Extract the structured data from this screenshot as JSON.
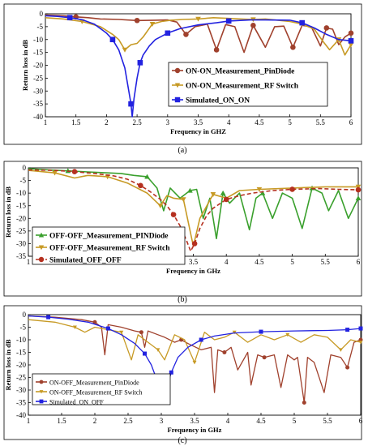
{
  "chart_data": [
    {
      "type": "line",
      "panel": "a",
      "caption": "(a)",
      "xlabel": "Frequency in GHZ",
      "ylabel": "Return loss in dB",
      "xlim": [
        1,
        6
      ],
      "ylim": [
        -40,
        0
      ],
      "xticks": [
        "1",
        "1.5",
        "2",
        "2.5",
        "3",
        "3.5",
        "4",
        "4.5",
        "5",
        "5.5",
        "6"
      ],
      "yticks": [
        "0",
        "-5",
        "-10",
        "-15",
        "-20",
        "-25",
        "-30",
        "-35",
        "-40"
      ],
      "legend_position": "right",
      "legend_style": "bold",
      "series": [
        {
          "name": "ON-ON_Measurement_PinDiode",
          "color": "#a0412d",
          "marker": "circle",
          "x": [
            1.0,
            1.3,
            1.5,
            1.7,
            1.9,
            2.2,
            2.5,
            2.8,
            3.0,
            3.15,
            3.3,
            3.45,
            3.55,
            3.65,
            3.8,
            3.95,
            4.1,
            4.25,
            4.4,
            4.6,
            4.75,
            4.9,
            5.05,
            5.2,
            5.35,
            5.5,
            5.6,
            5.7,
            5.8,
            5.9,
            6.0
          ],
          "y": [
            -0.5,
            -0.8,
            -1.2,
            -1.5,
            -2.0,
            -2.2,
            -2.6,
            -2.5,
            -2.4,
            -3.2,
            -8.0,
            -5.0,
            -4.5,
            -4.0,
            -14.0,
            -4.2,
            -5.0,
            -15.0,
            -4.5,
            -13.0,
            -5.0,
            -4.8,
            -13.0,
            -4.5,
            -5.0,
            -12.5,
            -5.5,
            -6.0,
            -12.0,
            -9.0,
            -7.5
          ]
        },
        {
          "name": "ON-ON_Measurement_RF Switch",
          "color": "#c79a25",
          "marker": "triangle-down",
          "x": [
            1.0,
            1.3,
            1.6,
            1.9,
            2.1,
            2.2,
            2.3,
            2.4,
            2.5,
            2.6,
            2.75,
            2.9,
            3.05,
            3.25,
            3.5,
            3.75,
            4.0,
            4.2,
            4.4,
            4.6,
            4.8,
            5.0,
            5.2,
            5.4,
            5.55,
            5.65,
            5.8,
            5.9,
            6.0
          ],
          "y": [
            -1.5,
            -2.0,
            -3.0,
            -5.0,
            -8.0,
            -10.0,
            -14.0,
            -12.0,
            -11.5,
            -9.0,
            -4.0,
            -3.0,
            -2.5,
            -2.2,
            -2.0,
            -1.5,
            -1.8,
            -2.0,
            -2.2,
            -2.0,
            -2.5,
            -3.0,
            -4.0,
            -6.0,
            -11.0,
            -14.0,
            -10.0,
            -16.0,
            -12.0
          ]
        },
        {
          "name": "Simulated_ON_ON",
          "color": "#2222e0",
          "marker": "square",
          "x": [
            1.0,
            1.2,
            1.4,
            1.6,
            1.8,
            2.0,
            2.1,
            2.2,
            2.3,
            2.35,
            2.4,
            2.42,
            2.45,
            2.5,
            2.55,
            2.6,
            2.7,
            2.8,
            3.0,
            3.2,
            3.5,
            3.8,
            4.0,
            4.35,
            4.6,
            5.0,
            5.2,
            5.4,
            5.6,
            5.8,
            6.0
          ],
          "y": [
            -0.8,
            -1.0,
            -1.5,
            -2.3,
            -4.0,
            -7.5,
            -10.0,
            -14.0,
            -21.0,
            -28.0,
            -35.0,
            -40.0,
            -33.0,
            -25.0,
            -19.0,
            -16.0,
            -12.5,
            -10.0,
            -7.5,
            -5.8,
            -4.3,
            -3.5,
            -2.8,
            -2.4,
            -2.4,
            -2.5,
            -3.5,
            -5.5,
            -8.0,
            -10.0,
            -10.5
          ]
        }
      ]
    },
    {
      "type": "line",
      "panel": "b",
      "caption": "(b)",
      "xlabel": "Frequency in GHz",
      "ylabel": "Return loss in dB",
      "xlim": [
        1,
        6
      ],
      "ylim": [
        -35,
        0
      ],
      "xticks": [
        "1",
        "1.5",
        "2",
        "2.5",
        "3",
        "3.5",
        "4",
        "4.5",
        "5",
        "5.5",
        "6"
      ],
      "yticks": [
        "0",
        "-5",
        "-10",
        "-15",
        "-20",
        "-25",
        "-30",
        "-35"
      ],
      "legend_position": "bottom-left",
      "legend_style": "bold",
      "series": [
        {
          "name": "OFF-OFF_Measurement_PINDiode",
          "color": "#3aa02d",
          "marker": "triangle-up",
          "x": [
            1.0,
            1.3,
            1.6,
            1.9,
            2.2,
            2.4,
            2.6,
            2.8,
            2.95,
            3.05,
            3.15,
            3.3,
            3.45,
            3.55,
            3.65,
            3.75,
            3.85,
            3.95,
            4.05,
            4.2,
            4.35,
            4.45,
            4.55,
            4.7,
            4.85,
            5.0,
            5.15,
            5.3,
            5.45,
            5.55,
            5.7,
            5.85,
            6.0
          ],
          "y": [
            -0.3,
            -0.8,
            -1.2,
            -1.6,
            -2.0,
            -2.2,
            -3.0,
            -3.5,
            -8.0,
            -17.0,
            -8.0,
            -12.0,
            -9.0,
            -8.5,
            -20.0,
            -12.0,
            -28.0,
            -10.0,
            -14.0,
            -10.0,
            -24.5,
            -12.0,
            -10.0,
            -20.0,
            -10.0,
            -12.0,
            -24.0,
            -8.0,
            -10.0,
            -17.0,
            -9.0,
            -20.0,
            -12.0
          ]
        },
        {
          "name": "OFF-OFF_Measurement_RF Switch",
          "color": "#c79a25",
          "marker": "triangle-down",
          "x": [
            1.0,
            1.4,
            1.7,
            1.9,
            2.2,
            2.5,
            2.8,
            3.0,
            3.1,
            3.2,
            3.35,
            3.5,
            3.6,
            3.8,
            4.0,
            4.2,
            4.5,
            5.0,
            5.5,
            6.0
          ],
          "y": [
            -1.0,
            -2.0,
            -4.0,
            -3.0,
            -3.5,
            -6.0,
            -10.0,
            -15.0,
            -11.0,
            -12.0,
            -12.5,
            -31.0,
            -20.0,
            -10.5,
            -12.0,
            -9.0,
            -8.5,
            -8.0,
            -7.5,
            -7.5
          ]
        },
        {
          "name": "Simulated_OFF_OFF",
          "color": "#b5301f",
          "marker": "circle",
          "x": [
            1.0,
            1.4,
            1.7,
            2.0,
            2.3,
            2.5,
            2.7,
            2.85,
            3.0,
            3.1,
            3.2,
            3.3,
            3.4,
            3.46,
            3.52,
            3.6,
            3.7,
            3.8,
            4.0,
            4.2,
            4.4,
            4.7,
            5.0,
            5.4,
            5.7,
            6.0
          ],
          "y": [
            -0.8,
            -1.0,
            -1.5,
            -2.2,
            -3.2,
            -4.5,
            -7.0,
            -9.5,
            -12.5,
            -15.0,
            -18.5,
            -23.0,
            -29.0,
            -33.0,
            -30.0,
            -24.0,
            -19.0,
            -16.0,
            -12.5,
            -11.0,
            -10.0,
            -9.0,
            -8.5,
            -8.2,
            -8.5,
            -8.7
          ]
        }
      ]
    },
    {
      "type": "line",
      "panel": "c",
      "caption": "(c)",
      "xlabel": "Frequency in GHz",
      "ylabel": "Return loss in dB",
      "xlim": [
        1,
        6
      ],
      "ylim": [
        -40,
        0
      ],
      "xticks": [
        "1",
        "1.5",
        "2",
        "2.5",
        "3",
        "3.5",
        "4",
        "4.5",
        "5",
        "5.5",
        "6"
      ],
      "yticks": [
        "0",
        "-5",
        "-10",
        "-15",
        "-20",
        "-25",
        "-30",
        "-35",
        "-40"
      ],
      "legend_position": "bottom-left",
      "legend_style": "normal",
      "series": [
        {
          "name": "ON-OFF_Measurement_PinDiode",
          "color": "#a0412d",
          "marker": "circle",
          "x": [
            1.0,
            1.4,
            1.8,
            2.0,
            2.1,
            2.15,
            2.2,
            2.4,
            2.6,
            2.7,
            2.75,
            2.8,
            2.95,
            3.05,
            3.2,
            3.3,
            3.4,
            3.6,
            3.75,
            3.8,
            3.85,
            3.95,
            4.05,
            4.15,
            4.3,
            4.35,
            4.45,
            4.55,
            4.7,
            4.8,
            4.9,
            5.0,
            5.05,
            5.15,
            5.2,
            5.3,
            5.45,
            5.55,
            5.7,
            5.8,
            5.9,
            6.0
          ],
          "y": [
            -0.5,
            -1.0,
            -2.0,
            -3.0,
            -5.0,
            -16.0,
            -4.0,
            -5.0,
            -6.5,
            -7.0,
            -13.0,
            -6.5,
            -8.0,
            -9.0,
            -11.0,
            -10.0,
            -11.5,
            -14.0,
            -13.0,
            -31.0,
            -14.0,
            -15.0,
            -13.0,
            -22.0,
            -15.0,
            -28.0,
            -16.0,
            -17.0,
            -16.0,
            -29.0,
            -16.0,
            -18.0,
            -17.0,
            -35.0,
            -17.0,
            -19.0,
            -31.0,
            -16.0,
            -17.0,
            -21.0,
            -11.0,
            -10.0
          ]
        },
        {
          "name": "ON-OFF_Measurement_RF Switch",
          "color": "#c79a25",
          "marker": "triangle-down",
          "x": [
            1.0,
            1.4,
            1.7,
            1.85,
            2.0,
            2.2,
            2.4,
            2.55,
            2.65,
            2.8,
            2.95,
            3.05,
            3.2,
            3.35,
            3.5,
            3.65,
            3.8,
            3.95,
            4.1,
            4.3,
            4.5,
            4.7,
            4.9,
            5.1,
            5.3,
            5.5,
            5.7,
            5.85,
            6.0
          ],
          "y": [
            -2.0,
            -3.0,
            -5.0,
            -7.0,
            -5.0,
            -6.0,
            -7.0,
            -18.0,
            -8.0,
            -11.0,
            -14.0,
            -18.0,
            -8.0,
            -10.0,
            -19.0,
            -7.0,
            -10.0,
            -9.0,
            -7.0,
            -11.0,
            -8.0,
            -10.0,
            -8.0,
            -11.0,
            -8.0,
            -9.0,
            -14.0,
            -10.0,
            -11.0
          ]
        },
        {
          "name": "Simulated_ON_OFF",
          "color": "#2222e0",
          "marker": "square",
          "x": [
            1.0,
            1.3,
            1.6,
            1.9,
            2.2,
            2.4,
            2.6,
            2.75,
            2.85,
            2.92,
            2.98,
            3.03,
            3.08,
            3.15,
            3.25,
            3.4,
            3.6,
            3.8,
            4.1,
            4.5,
            5.0,
            5.5,
            5.8,
            6.0
          ],
          "y": [
            -0.5,
            -1.0,
            -1.8,
            -3.0,
            -5.5,
            -8.0,
            -11.5,
            -15.5,
            -20.0,
            -25.0,
            -30.0,
            -33.5,
            -29.0,
            -23.0,
            -17.0,
            -13.0,
            -10.0,
            -8.5,
            -7.3,
            -6.8,
            -6.5,
            -6.3,
            -6.0,
            -5.5
          ]
        }
      ]
    }
  ]
}
